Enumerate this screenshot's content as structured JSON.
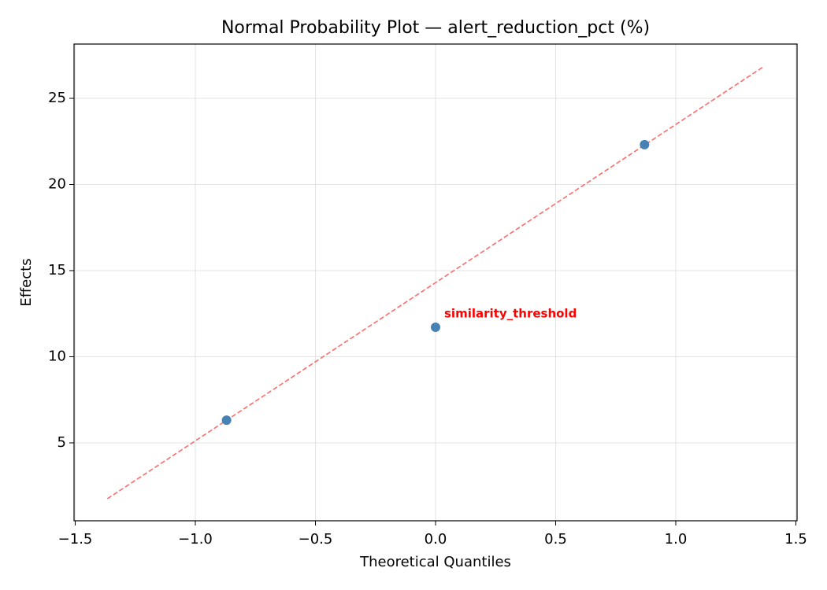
{
  "chart_data": {
    "type": "scatter",
    "title": "Normal Probability Plot — alert_reduction_pct (%)",
    "x_label": "Theoretical Quantiles",
    "y_label": "Effects",
    "x": [
      -0.87,
      0,
      0.87
    ],
    "values": [
      6.32,
      11.71,
      22.31
    ],
    "color": "#4682b4",
    "point_labels": [
      null,
      "similarity_threshold",
      null
    ],
    "point_label_color": "#ff0000",
    "fit_line": {
      "x": [
        -1.366,
        1.369
      ],
      "y": [
        1.76,
        26.87
      ],
      "color": "#ff6b6b",
      "dashed": true
    },
    "xlim": [
      -1.505,
      1.505
    ],
    "xticks": [
      {
        "value": -1.5,
        "label": "−1.5"
      },
      {
        "value": -1,
        "label": "−1.0"
      },
      {
        "value": -0.5,
        "label": "−0.5"
      },
      {
        "value": 0,
        "label": "0.0"
      },
      0.5,
      {
        "value": 1,
        "label": "1.0"
      },
      1.5
    ],
    "ylim": [
      0.48,
      28.15
    ],
    "yticks": [
      5,
      10,
      15,
      20,
      25
    ],
    "grid": true
  }
}
